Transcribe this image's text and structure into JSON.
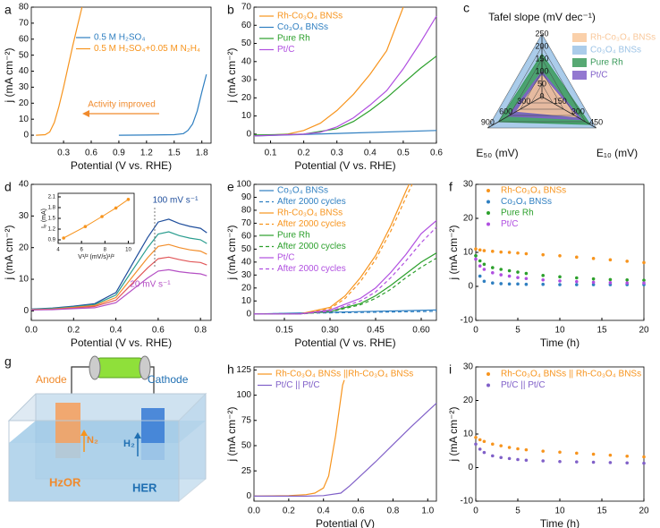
{
  "chart_data": [
    {
      "label": "a",
      "type": "line",
      "xlabel": "Potential (V vs. RHE)",
      "ylabel": "j (mA cm⁻²)",
      "xlim": [
        -0.05,
        1.9
      ],
      "xticks": [
        0.3,
        0.6,
        0.9,
        1.2,
        1.5,
        1.8
      ],
      "ylim": [
        -5,
        80
      ],
      "yticks": [
        0,
        10,
        20,
        30,
        40,
        50,
        60,
        70,
        80
      ],
      "annotation": "Activity improved",
      "series": [
        {
          "name": "0.5 M H₂SO₄",
          "color": "#2f7fc1",
          "x": [
            0.9,
            1.2,
            1.5,
            1.6,
            1.65,
            1.7,
            1.75,
            1.8,
            1.85
          ],
          "values": [
            0,
            0.1,
            0.3,
            1,
            3,
            7,
            15,
            27,
            38
          ]
        },
        {
          "name": "0.5 M H₂SO₄+0.05 M N₂H₄",
          "color": "#f7941d",
          "x": [
            0.0,
            0.1,
            0.15,
            0.2,
            0.25,
            0.3,
            0.35,
            0.4,
            0.45,
            0.5
          ],
          "values": [
            0,
            0.3,
            2,
            8,
            18,
            30,
            43,
            56,
            68,
            80
          ]
        }
      ]
    },
    {
      "label": "b",
      "type": "line",
      "xlabel": "Potential (V vs. RHE)",
      "ylabel": "j (mA cm⁻²)",
      "xlim": [
        0.05,
        0.6
      ],
      "xticks": [
        0.1,
        0.2,
        0.3,
        0.4,
        0.5,
        0.6
      ],
      "ylim": [
        -5,
        70
      ],
      "yticks": [
        0,
        10,
        20,
        30,
        40,
        50,
        60,
        70
      ],
      "series": [
        {
          "name": "Rh-Co₃O₄ BNSs",
          "color": "#f7941d",
          "x": [
            0.05,
            0.15,
            0.2,
            0.25,
            0.3,
            0.35,
            0.4,
            0.45,
            0.5
          ],
          "values": [
            -1,
            0,
            2,
            6,
            13,
            22,
            33,
            46,
            70
          ]
        },
        {
          "name": "Co₃O₄ BNSs",
          "color": "#2f7fc1",
          "x": [
            0.05,
            0.6
          ],
          "values": [
            -1,
            2
          ]
        },
        {
          "name": "Pure Rh",
          "color": "#2ca02c",
          "x": [
            0.05,
            0.2,
            0.3,
            0.35,
            0.4,
            0.45,
            0.5,
            0.55,
            0.6
          ],
          "values": [
            -0.5,
            0,
            3,
            7,
            13,
            20,
            28,
            36,
            43
          ]
        },
        {
          "name": "Pt/C",
          "color": "#b04fe0",
          "x": [
            0.05,
            0.2,
            0.25,
            0.3,
            0.35,
            0.4,
            0.45,
            0.5,
            0.55,
            0.6
          ],
          "values": [
            -1,
            0,
            1,
            4,
            9,
            16,
            24,
            36,
            50,
            65
          ]
        }
      ]
    },
    {
      "label": "c",
      "type": "radar",
      "axes": [
        {
          "label": "Tafel slope (mV dec⁻¹)",
          "lim": [
            0,
            250
          ],
          "ticks": [
            0,
            50,
            100,
            150,
            200,
            250
          ]
        },
        {
          "label": "E₅₀ (mV)",
          "lim": [
            0,
            900
          ],
          "ticks": [
            300,
            600,
            900
          ]
        },
        {
          "label": "E₁₀ (mV)",
          "lim": [
            0,
            450
          ],
          "ticks": [
            150,
            300,
            450
          ]
        }
      ],
      "series": [
        {
          "name": "Rh-Co₃O₄ BNSs",
          "color": "#f9c89b",
          "values": [
            85,
            420,
            290
          ]
        },
        {
          "name": "Co₃O₄ BNSs",
          "color": "#9cc3e6",
          "values": [
            245,
            880,
            440
          ]
        },
        {
          "name": "Pure Rh",
          "color": "#3a9a5b",
          "values": [
            170,
            720,
            400
          ]
        },
        {
          "name": "Pt/C",
          "color": "#8060c8",
          "values": [
            100,
            560,
            330
          ]
        }
      ]
    },
    {
      "label": "d",
      "type": "line",
      "xlabel": "Potential (V vs. RHE)",
      "ylabel": "j (mA cm⁻²)",
      "xlim": [
        0,
        0.85
      ],
      "xticks": [
        {
          "value": 0,
          "label": "0.0"
        },
        0.2,
        0.4,
        0.6,
        0.8
      ],
      "ylim": [
        -3,
        40
      ],
      "yticks": [
        0,
        10,
        20,
        30,
        40
      ],
      "annotations": [
        "100 mV s⁻¹",
        "20 mV s⁻¹"
      ],
      "x": [
        0,
        0.1,
        0.2,
        0.3,
        0.4,
        0.45,
        0.5,
        0.55,
        0.6,
        0.65,
        0.7,
        0.75,
        0.8,
        0.83
      ],
      "series": [
        {
          "color": "#1f4e9c",
          "values": [
            0.6,
            0.9,
            1.5,
            2.3,
            5.8,
            11.6,
            17.4,
            23.2,
            28.1,
            29,
            27.6,
            26.7,
            26.1,
            24.7
          ]
        },
        {
          "color": "#2a9d8f",
          "values": [
            0.5,
            0.8,
            1.3,
            2,
            5,
            10,
            15,
            20,
            24.3,
            25,
            23.8,
            23,
            22.5,
            21.3
          ]
        },
        {
          "color": "#f28e2b",
          "values": [
            0.4,
            0.6,
            1.1,
            1.7,
            4.2,
            8.4,
            12.6,
            16.8,
            20.4,
            21,
            20,
            19.3,
            18.9,
            17.9
          ]
        },
        {
          "color": "#e15759",
          "values": [
            0.3,
            0.5,
            0.9,
            1.4,
            3.4,
            6.8,
            10.2,
            13.6,
            16.5,
            17,
            16.2,
            15.6,
            15.3,
            14.5
          ]
        },
        {
          "color": "#b44fc4",
          "values": [
            0.3,
            0.4,
            0.7,
            1,
            2.6,
            5.2,
            7.8,
            10.4,
            12.6,
            13,
            12.4,
            12,
            11.7,
            11.1
          ]
        }
      ],
      "inset": {
        "type": "scatter",
        "xlabel": "V¹/² (mV/s)¹/²",
        "ylabel": "Iₚ (mA)",
        "color": "#f7941d",
        "xlim": [
          4,
          10.5
        ],
        "xticks": [
          4,
          6,
          8,
          10
        ],
        "ylim": [
          0.8,
          2.2
        ],
        "yticks": [
          0.9,
          1.2,
          1.5,
          1.8,
          2.1
        ],
        "x": [
          4.47,
          6.32,
          7.75,
          8.94,
          10
        ],
        "values": [
          0.95,
          1.27,
          1.55,
          1.79,
          2.03
        ]
      }
    },
    {
      "label": "e",
      "type": "line",
      "xlabel": "Potential (V vs. RHE)",
      "ylabel": "j (mA cm⁻²)",
      "xlim": [
        0.05,
        0.65
      ],
      "xticks": [
        0.15,
        {
          "value": 0.3,
          "label": "0.30"
        },
        0.45,
        {
          "value": 0.6,
          "label": "0.60"
        }
      ],
      "ylim": [
        -5,
        100
      ],
      "yticks": [
        0,
        10,
        20,
        30,
        40,
        50,
        60,
        70,
        80,
        90,
        100
      ],
      "series": [
        {
          "name": "Co₃O₄ BNSs",
          "color": "#2f7fc1",
          "dash": false,
          "x": [
            0.05,
            0.65
          ],
          "values": [
            0,
            3
          ]
        },
        {
          "name": "After 2000 cycles",
          "color": "#2f7fc1",
          "dash": true,
          "x": [
            0.05,
            0.65
          ],
          "values": [
            0,
            2
          ]
        },
        {
          "name": "Rh-Co₃O₄ BNSs",
          "color": "#f7941d",
          "dash": false,
          "x": [
            0.05,
            0.2,
            0.3,
            0.35,
            0.4,
            0.45,
            0.5,
            0.55,
            0.56
          ],
          "values": [
            0,
            0,
            5,
            14,
            28,
            45,
            68,
            95,
            100
          ]
        },
        {
          "name": "After 2000 cycles",
          "color": "#f7941d",
          "dash": true,
          "x": [
            0.05,
            0.2,
            0.3,
            0.35,
            0.4,
            0.45,
            0.5,
            0.55,
            0.57
          ],
          "values": [
            0,
            0,
            4,
            12,
            25,
            42,
            64,
            90,
            100
          ]
        },
        {
          "name": "Pure Rh",
          "color": "#2ca02c",
          "dash": false,
          "x": [
            0.05,
            0.2,
            0.3,
            0.4,
            0.45,
            0.5,
            0.55,
            0.6,
            0.65
          ],
          "values": [
            0,
            0,
            2,
            8,
            14,
            22,
            31,
            40,
            47
          ]
        },
        {
          "name": "After 2000 cycles",
          "color": "#2ca02c",
          "dash": true,
          "x": [
            0.05,
            0.2,
            0.3,
            0.4,
            0.45,
            0.5,
            0.55,
            0.6,
            0.65
          ],
          "values": [
            0,
            0,
            1.5,
            7,
            12,
            19,
            28,
            36,
            43
          ]
        },
        {
          "name": "Pt/C",
          "color": "#b04fe0",
          "dash": false,
          "x": [
            0.05,
            0.2,
            0.3,
            0.4,
            0.45,
            0.5,
            0.55,
            0.6,
            0.65
          ],
          "values": [
            0,
            0,
            3,
            12,
            20,
            32,
            46,
            62,
            72
          ]
        },
        {
          "name": "After 2000 cycles",
          "color": "#b04fe0",
          "dash": true,
          "x": [
            0.05,
            0.2,
            0.3,
            0.4,
            0.45,
            0.5,
            0.55,
            0.6,
            0.65
          ],
          "values": [
            0,
            0,
            2,
            10,
            17,
            28,
            41,
            55,
            67
          ]
        }
      ]
    },
    {
      "label": "f",
      "type": "scatter",
      "xlabel": "Time (h)",
      "ylabel": "j (mA cm⁻²)",
      "xlim": [
        0,
        20
      ],
      "xticks": [
        0,
        5,
        10,
        15,
        20
      ],
      "ylim": [
        -10,
        30
      ],
      "yticks": [
        -10,
        0,
        10,
        20,
        30
      ],
      "x": [
        0,
        0.5,
        1,
        2,
        3,
        4,
        5,
        6,
        8,
        10,
        12,
        14,
        16,
        18,
        20
      ],
      "series": [
        {
          "name": "Rh-Co₃O₄ BNSs",
          "color": "#f7941d",
          "values": [
            11,
            10.7,
            10.5,
            10.3,
            10.1,
            10,
            9.8,
            9.6,
            9.3,
            9,
            8.6,
            8.2,
            7.8,
            7.4,
            7
          ]
        },
        {
          "name": "Co₃O₄ BNSs",
          "color": "#2f7fc1",
          "values": [
            9,
            3,
            1.5,
            1,
            0.8,
            0.7,
            0.7,
            0.6,
            0.6,
            0.5,
            0.5,
            0.5,
            0.5,
            0.5,
            0.5
          ]
        },
        {
          "name": "Pure Rh",
          "color": "#2ca02c",
          "values": [
            9,
            7.5,
            6.5,
            5.5,
            5,
            4.6,
            4.2,
            3.8,
            3.2,
            2.8,
            2.5,
            2.2,
            2,
            1.9,
            1.8
          ]
        },
        {
          "name": "Pt/C",
          "color": "#b04fe0",
          "values": [
            8,
            6,
            5,
            4,
            3.4,
            3,
            2.6,
            2.3,
            1.9,
            1.6,
            1.4,
            1.2,
            1.1,
            1,
            1
          ]
        }
      ]
    },
    {
      "label": "h",
      "type": "line",
      "xlabel": "Potential (V)",
      "ylabel": "j (mA cm⁻²)",
      "xlim": [
        0,
        1.05
      ],
      "xticks": [
        {
          "value": 0,
          "label": "0.0"
        },
        0.2,
        0.4,
        0.6,
        0.8,
        {
          "value": 1,
          "label": "1.0"
        }
      ],
      "ylim": [
        -5,
        128
      ],
      "yticks": [
        0,
        25,
        50,
        75,
        100,
        125
      ],
      "series": [
        {
          "name": "Rh-Co₃O₄ BNSs ||Rh-Co₃O₄ BNSs",
          "color": "#f7941d",
          "x": [
            0,
            0.2,
            0.3,
            0.35,
            0.4,
            0.43,
            0.45,
            0.47,
            0.49,
            0.51,
            0.52
          ],
          "values": [
            0,
            0.5,
            1.5,
            3,
            8,
            20,
            40,
            60,
            85,
            110,
            115
          ]
        },
        {
          "name": "Pt/C || Pt/C",
          "color": "#8060c8",
          "x": [
            0,
            0.3,
            0.4,
            0.5,
            0.55,
            0.6,
            0.7,
            0.8,
            0.9,
            1.0,
            1.05
          ],
          "values": [
            0,
            0,
            0.5,
            3,
            10,
            18,
            34,
            51,
            68,
            84,
            92
          ]
        }
      ]
    },
    {
      "label": "i",
      "type": "scatter",
      "xlabel": "Time (h)",
      "ylabel": "j (mA cm⁻²)",
      "xlim": [
        0,
        20
      ],
      "xticks": [
        0,
        5,
        10,
        15,
        20
      ],
      "ylim": [
        -10,
        30
      ],
      "yticks": [
        -10,
        0,
        10,
        20,
        30
      ],
      "x": [
        0,
        0.5,
        1,
        2,
        3,
        4,
        5,
        6,
        8,
        10,
        12,
        14,
        16,
        18,
        20
      ],
      "series": [
        {
          "name": "Rh-Co₃O₄ BNSs || Rh-Co₃O₄ BNSs",
          "color": "#f7941d",
          "values": [
            9,
            8.3,
            7.8,
            7,
            6.5,
            6,
            5.6,
            5.3,
            4.9,
            4.6,
            4.3,
            4,
            3.7,
            3.4,
            3.2
          ]
        },
        {
          "name": "Pt/C || Pt/C",
          "color": "#8060c8",
          "values": [
            7,
            5.5,
            4.5,
            3.5,
            3,
            2.7,
            2.4,
            2.2,
            2,
            1.8,
            1.7,
            1.6,
            1.5,
            1.4,
            1.3
          ]
        }
      ]
    }
  ],
  "diagram": {
    "label": "g",
    "anode": "Anode",
    "cathode": "Cathode",
    "anode_gas": "N₂",
    "cathode_gas": "H₂",
    "anode_reaction": "HzOR",
    "cathode_reaction": "HER"
  }
}
